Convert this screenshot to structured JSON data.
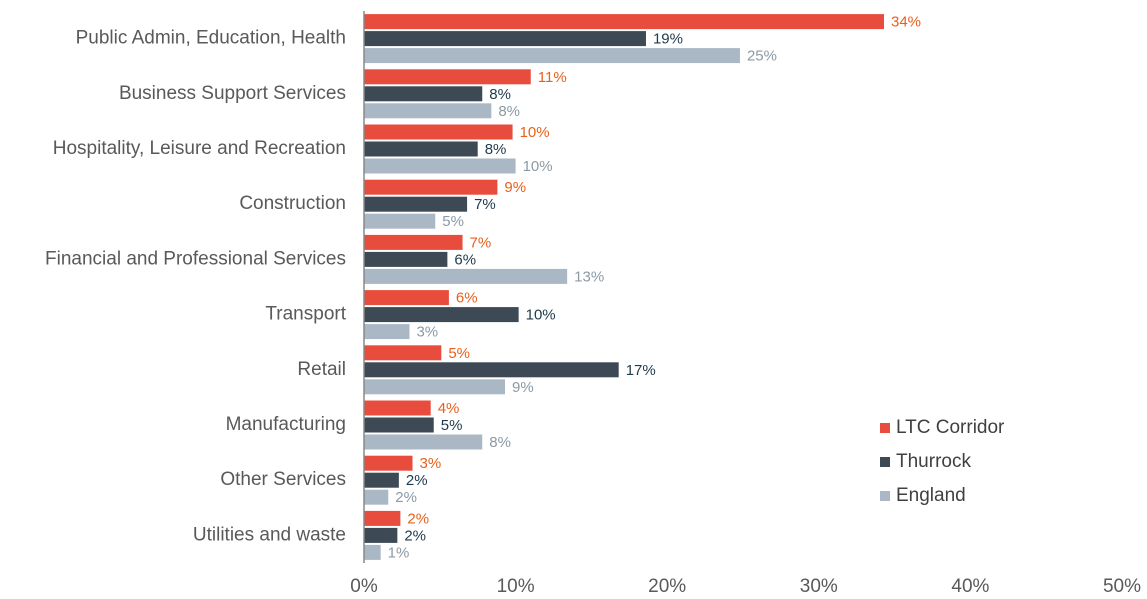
{
  "chart_data": {
    "type": "hbar",
    "categories": [
      "Public Admin, Education, Health",
      "Business Support Services",
      "Hospitality, Leisure and Recreation",
      "Construction",
      "Financial and Professional Services",
      "Transport",
      "Retail",
      "Manufacturing",
      "Other Services",
      "Utilities and waste"
    ],
    "series": [
      {
        "name": "LTC Corridor",
        "color": "#e84c3d",
        "label_color": "#e8601c",
        "values": [
          34.3,
          11.0,
          9.8,
          8.8,
          6.5,
          5.6,
          5.1,
          4.4,
          3.2,
          2.4
        ],
        "value_labels": [
          "34%",
          "11%",
          "10%",
          "9%",
          "7%",
          "6%",
          "5%",
          "4%",
          "3%",
          "2%"
        ]
      },
      {
        "name": "Thurrock",
        "color": "#3d4a55",
        "label_color": "#1f3a4d",
        "values": [
          18.6,
          7.8,
          7.5,
          6.8,
          5.5,
          10.2,
          16.8,
          4.6,
          2.3,
          2.2
        ],
        "value_labels": [
          "19%",
          "8%",
          "8%",
          "7%",
          "6%",
          "10%",
          "17%",
          "5%",
          "2%",
          "2%"
        ]
      },
      {
        "name": "England",
        "color": "#aab8c5",
        "label_color": "#8a9aa6",
        "values": [
          24.8,
          8.4,
          10.0,
          4.7,
          13.4,
          3.0,
          9.3,
          7.8,
          1.6,
          1.1
        ],
        "value_labels": [
          "25%",
          "8%",
          "10%",
          "5%",
          "13%",
          "3%",
          "9%",
          "8%",
          "2%",
          "1%"
        ]
      }
    ],
    "xlim": [
      0,
      50
    ],
    "xticks": [
      {
        "value": 0,
        "label": "0%"
      },
      {
        "value": 10,
        "label": "10%"
      },
      {
        "value": 20,
        "label": "20%"
      },
      {
        "value": 30,
        "label": "30%"
      },
      {
        "value": 40,
        "label": "40%"
      },
      {
        "value": 50,
        "label": "50%"
      }
    ],
    "grid": false,
    "legend": "lower right"
  }
}
